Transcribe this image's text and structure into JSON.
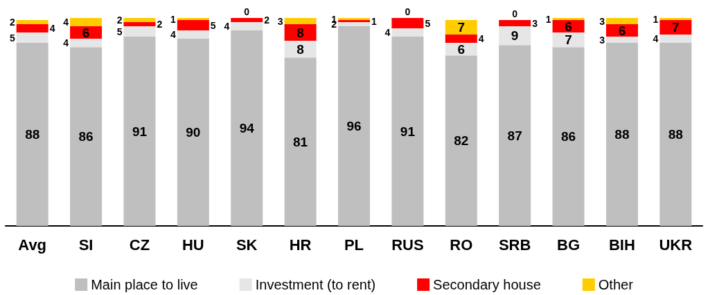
{
  "chart_data": {
    "type": "bar",
    "stacked": true,
    "data_labels": true,
    "legend": "bottom",
    "tick_labels": "x",
    "ylim": [
      0,
      100
    ],
    "categories": [
      "Avg",
      "SI",
      "CZ",
      "HU",
      "SK",
      "HR",
      "PL",
      "RUS",
      "RO",
      "SRB",
      "BG",
      "BIH",
      "UKR"
    ],
    "series": [
      {
        "name": "Main place to live",
        "color": "#bfbfbf",
        "values": [
          88,
          86,
          91,
          90,
          94,
          81,
          96,
          91,
          82,
          87,
          86,
          88,
          88
        ]
      },
      {
        "name": "Investment (to rent)",
        "color": "#e6e6e6",
        "values": [
          5,
          4,
          5,
          4,
          4,
          8,
          2,
          4,
          6,
          9,
          7,
          3,
          4
        ]
      },
      {
        "name": "Secondary house",
        "color": "#ff0000",
        "values": [
          4,
          6,
          2,
          5,
          2,
          8,
          1,
          5,
          4,
          3,
          6,
          6,
          7
        ]
      },
      {
        "name": "Other",
        "color": "#ffcc00",
        "values": [
          2,
          4,
          2,
          1,
          0,
          3,
          1,
          0,
          7,
          0,
          1,
          3,
          1
        ]
      }
    ]
  }
}
